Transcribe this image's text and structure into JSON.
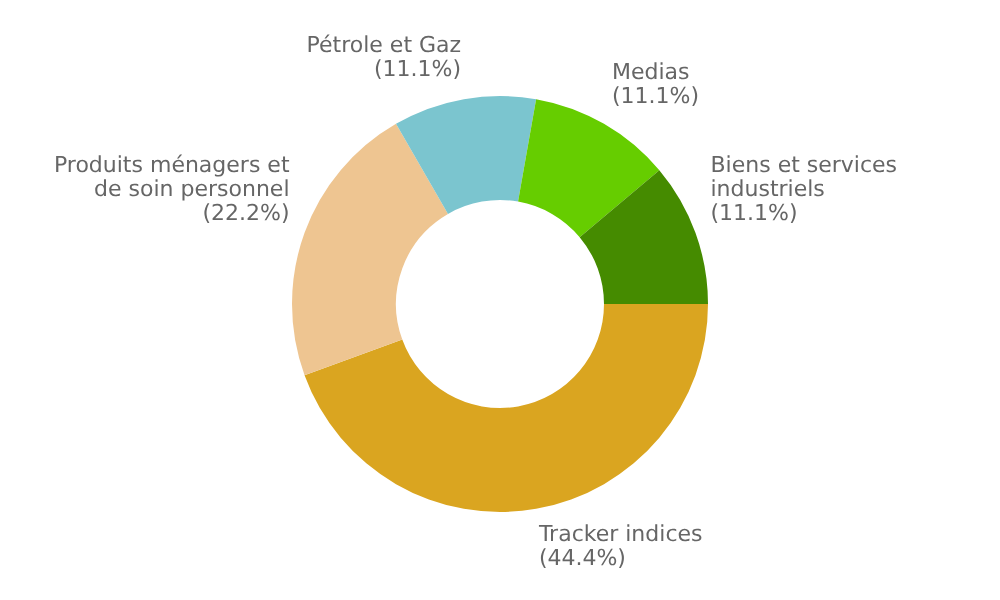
{
  "chart_data": {
    "type": "donut",
    "categories": [
      "Tracker indices",
      "Produits ménagers et de soin personnel",
      "Pétrole et Gaz",
      "Medias",
      "Biens et services industriels"
    ],
    "values": [
      44.4,
      22.2,
      11.1,
      11.1,
      11.1
    ],
    "colors": [
      "#daa520",
      "#eec591",
      "#7bc5cf",
      "#66cd00",
      "#458b00"
    ],
    "value_labels": [
      "(44.4%)",
      "(22.2%)",
      "(11.1%)",
      "(11.1%)",
      "(11.1%)"
    ],
    "legend": false
  }
}
